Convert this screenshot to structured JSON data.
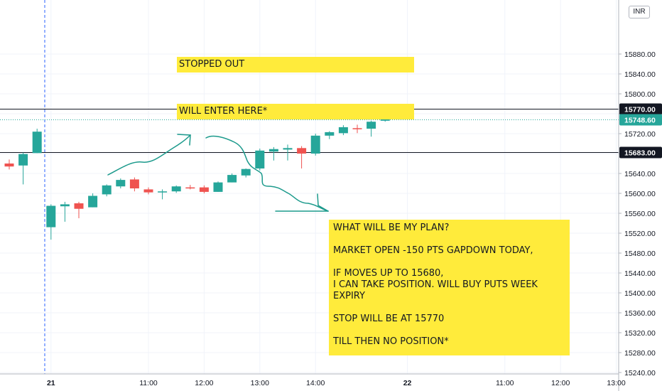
{
  "currency": "INR",
  "chart_data": {
    "type": "candlestick",
    "y_axis": {
      "ylim": [
        15240,
        15890
      ],
      "ticks": [
        15240,
        15280,
        15320,
        15360,
        15400,
        15440,
        15480,
        15520,
        15560,
        15600,
        15640,
        15680,
        15720,
        15760,
        15800,
        15840,
        15880
      ],
      "tick_labels": [
        "15240.00",
        "15280.00",
        "15320.00",
        "15360.00",
        "15400.00",
        "15440.00",
        "15480.00",
        "15520.00",
        "15560.00",
        "15600.00",
        "15640.00",
        "15680.00",
        "15720.00",
        "15760.00",
        "15800.00",
        "15840.00",
        "15880.00"
      ]
    },
    "x_axis": {
      "labels": [
        {
          "text": "21",
          "slot": 3,
          "bold": true
        },
        {
          "text": "11:00",
          "slot": 10
        },
        {
          "text": "12:00",
          "slot": 14
        },
        {
          "text": "13:00",
          "slot": 18
        },
        {
          "text": "14:00",
          "slot": 22
        },
        {
          "text": "22",
          "slot": 28.6,
          "bold": true
        },
        {
          "text": "11:00",
          "slot": 35.6
        },
        {
          "text": "12:00",
          "slot": 39.6
        },
        {
          "text": "13:00",
          "slot": 43.6
        }
      ]
    },
    "candles": [
      {
        "slot": 0,
        "o": 15660,
        "h": 15668,
        "l": 15648,
        "c": 15654
      },
      {
        "slot": 1,
        "o": 15656,
        "h": 15682,
        "l": 15618,
        "c": 15679
      },
      {
        "slot": 2,
        "o": 15681,
        "h": 15730,
        "l": 15681,
        "c": 15724
      },
      {
        "slot": 3,
        "o": 15532,
        "h": 15578,
        "l": 15507,
        "c": 15575
      },
      {
        "slot": 4,
        "o": 15574,
        "h": 15583,
        "l": 15543,
        "c": 15578
      },
      {
        "slot": 5,
        "o": 15580,
        "h": 15583,
        "l": 15550,
        "c": 15569
      },
      {
        "slot": 6,
        "o": 15572,
        "h": 15600,
        "l": 15572,
        "c": 15595
      },
      {
        "slot": 7,
        "o": 15598,
        "h": 15618,
        "l": 15594,
        "c": 15616
      },
      {
        "slot": 8,
        "o": 15614,
        "h": 15630,
        "l": 15610,
        "c": 15627
      },
      {
        "slot": 9,
        "o": 15628,
        "h": 15632,
        "l": 15604,
        "c": 15610
      },
      {
        "slot": 10,
        "o": 15608,
        "h": 15612,
        "l": 15598,
        "c": 15602
      },
      {
        "slot": 11,
        "o": 15604,
        "h": 15608,
        "l": 15588,
        "c": 15604
      },
      {
        "slot": 12,
        "o": 15604,
        "h": 15616,
        "l": 15601,
        "c": 15614
      },
      {
        "slot": 13,
        "o": 15612,
        "h": 15617,
        "l": 15608,
        "c": 15611
      },
      {
        "slot": 14,
        "o": 15612,
        "h": 15616,
        "l": 15600,
        "c": 15603
      },
      {
        "slot": 15,
        "o": 15603,
        "h": 15624,
        "l": 15603,
        "c": 15622
      },
      {
        "slot": 16,
        "o": 15622,
        "h": 15640,
        "l": 15622,
        "c": 15637
      },
      {
        "slot": 17,
        "o": 15636,
        "h": 15650,
        "l": 15632,
        "c": 15649
      },
      {
        "slot": 18,
        "o": 15650,
        "h": 15690,
        "l": 15646,
        "c": 15686
      },
      {
        "slot": 19,
        "o": 15684,
        "h": 15693,
        "l": 15666,
        "c": 15689
      },
      {
        "slot": 20,
        "o": 15688,
        "h": 15698,
        "l": 15666,
        "c": 15691
      },
      {
        "slot": 21,
        "o": 15691,
        "h": 15695,
        "l": 15650,
        "c": 15680
      },
      {
        "slot": 22,
        "o": 15680,
        "h": 15720,
        "l": 15676,
        "c": 15716
      },
      {
        "slot": 23,
        "o": 15716,
        "h": 15725,
        "l": 15709,
        "c": 15723
      },
      {
        "slot": 24,
        "o": 15721,
        "h": 15737,
        "l": 15717,
        "c": 15733
      },
      {
        "slot": 25,
        "o": 15731,
        "h": 15738,
        "l": 15721,
        "c": 15729
      },
      {
        "slot": 26,
        "o": 15730,
        "h": 15746,
        "l": 15714,
        "c": 15744
      },
      {
        "slot": 27,
        "o": 15746,
        "h": 15760,
        "l": 15744,
        "c": 15749
      }
    ],
    "horizontal_lines": [
      {
        "value": 15770,
        "label": "15770.00",
        "style": "solid"
      },
      {
        "value": 15683,
        "label": "15683.00",
        "style": "solid"
      },
      {
        "value": 15748.6,
        "label": "15748.60",
        "style": "dotted",
        "last_price": true
      }
    ],
    "colors": {
      "up": "#26a69a",
      "down": "#ef5350",
      "last_price": "#26a69a",
      "session_line": "#2962ff"
    }
  },
  "annotations": {
    "stopped_out": "STOPPED OUT",
    "will_enter": "WILL ENTER HERE*",
    "plan_lines": [
      "WHAT WILL BE MY PLAN?",
      "",
      "MARKET OPEN -150 PTS GAPDOWN TODAY,",
      "",
      "IF MOVES UP TO 15680,",
      "I CAN TAKE POSITION. WILL BUY PUTS WEEK",
      "EXPIRY",
      "",
      "STOP WILL BE AT 15770",
      "",
      "TILL THEN NO POSITION*"
    ]
  }
}
